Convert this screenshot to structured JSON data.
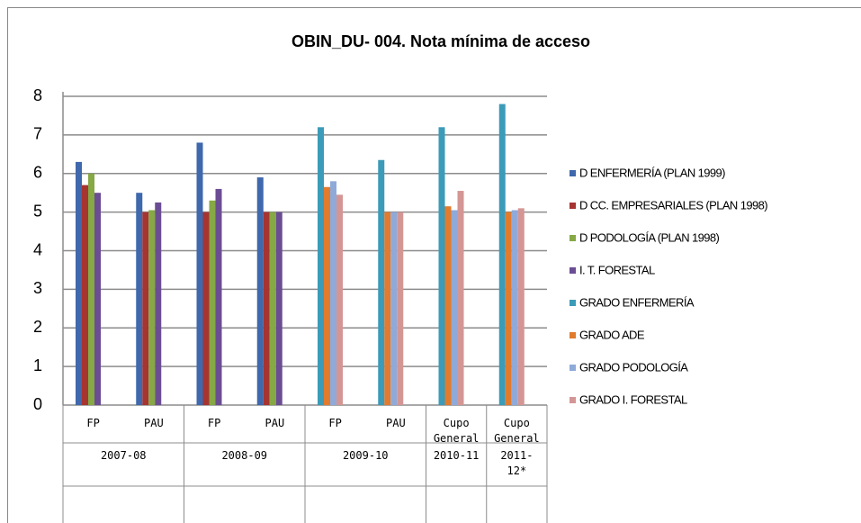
{
  "chart_data": {
    "type": "bar",
    "title": "OBIN_DU- 004. Nota mínima de acceso",
    "category_groups": [
      {
        "label": "2007-08",
        "categories": [
          "FP",
          "PAU"
        ]
      },
      {
        "label": "2008-09",
        "categories": [
          "FP",
          "PAU"
        ]
      },
      {
        "label": "2009-10",
        "categories": [
          "FP",
          "PAU"
        ]
      },
      {
        "label": "2010-11",
        "categories": [
          "Cupo General"
        ]
      },
      {
        "label": "2011-12*",
        "categories": [
          "Cupo General"
        ]
      }
    ],
    "series": [
      {
        "name": "D ENFERMERÍA  (PLAN 1999)",
        "color": "#3f68ad",
        "values": [
          6.3,
          5.5,
          6.8,
          5.9,
          null,
          null,
          null,
          null
        ]
      },
      {
        "name": "D CC. EMPRESARIALES (PLAN 1998)",
        "color": "#a63431",
        "values": [
          5.7,
          5.0,
          5.0,
          5.0,
          null,
          null,
          null,
          null
        ]
      },
      {
        "name": "D PODOLOGÍA (PLAN 1998)",
        "color": "#86a845",
        "values": [
          6.0,
          5.05,
          5.3,
          5.0,
          null,
          null,
          null,
          null
        ]
      },
      {
        "name": "I. T. FORESTAL",
        "color": "#6b4d94",
        "values": [
          5.5,
          5.25,
          5.6,
          5.0,
          null,
          null,
          null,
          null
        ]
      },
      {
        "name": "GRADO ENFERMERÍA",
        "color": "#3b9bb8",
        "values": [
          null,
          null,
          null,
          null,
          7.2,
          6.35,
          7.2,
          7.8
        ]
      },
      {
        "name": "GRADO ADE",
        "color": "#e17b2e",
        "values": [
          null,
          null,
          null,
          null,
          5.65,
          5.0,
          5.15,
          5.0
        ]
      },
      {
        "name": "GRADO PODOLOGÍA",
        "color": "#8faad9",
        "values": [
          null,
          null,
          null,
          null,
          5.8,
          5.0,
          5.05,
          5.05
        ]
      },
      {
        "name": "GRADO I. FORESTAL",
        "color": "#d49694",
        "values": [
          null,
          null,
          null,
          null,
          5.45,
          5.0,
          5.55,
          5.1
        ]
      }
    ],
    "ylim": [
      0,
      8
    ],
    "yticks": [
      0,
      1,
      2,
      3,
      4,
      5,
      6,
      7,
      8
    ],
    "grid": true,
    "legend": "right"
  }
}
